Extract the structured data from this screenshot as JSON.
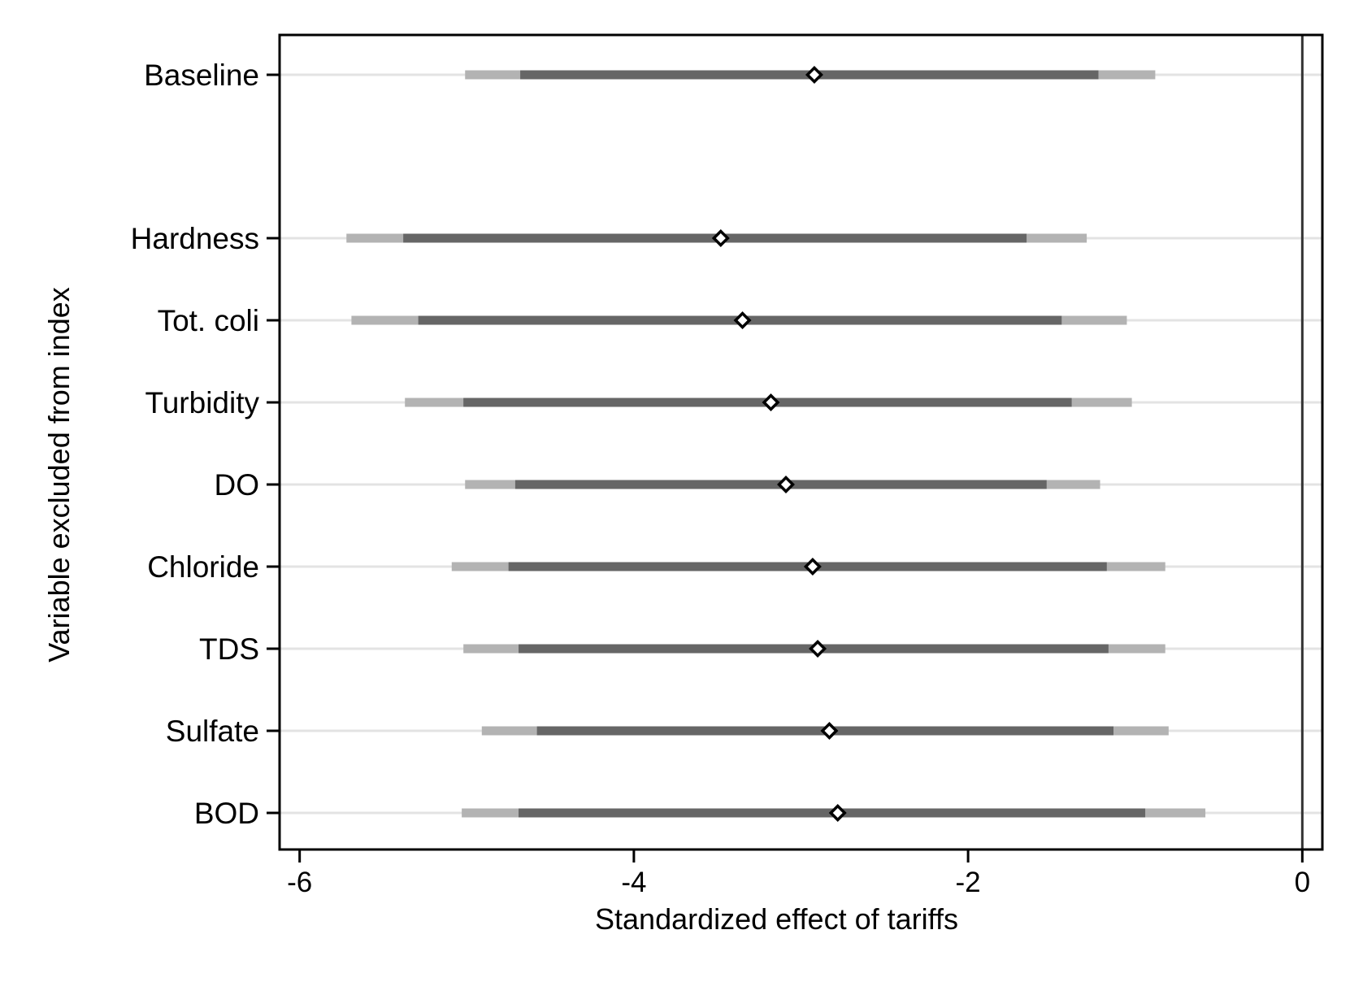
{
  "chart_data": {
    "type": "coefficient-plot",
    "xlabel": "Standardized effect of tariffs",
    "ylabel": "Variable excluded from index",
    "xlim": [
      -6.12,
      0.12
    ],
    "xticks": [
      -6,
      -4,
      -2,
      0
    ],
    "xtick_labels": [
      "-6",
      "-4",
      "-2",
      "0"
    ],
    "reference_line_x": 0,
    "grid": "horizontal lines at each row",
    "rows": [
      {
        "label": "Baseline",
        "estimate": -2.92,
        "ci_inner": [
          -4.68,
          -1.22
        ],
        "ci_outer": [
          -5.01,
          -0.88
        ]
      },
      {
        "label": "Hardness",
        "estimate": -3.48,
        "ci_inner": [
          -5.38,
          -1.65
        ],
        "ci_outer": [
          -5.72,
          -1.29
        ]
      },
      {
        "label": "Tot. coli",
        "estimate": -3.35,
        "ci_inner": [
          -5.29,
          -1.44
        ],
        "ci_outer": [
          -5.69,
          -1.05
        ]
      },
      {
        "label": "Turbidity",
        "estimate": -3.18,
        "ci_inner": [
          -5.02,
          -1.38
        ],
        "ci_outer": [
          -5.37,
          -1.02
        ]
      },
      {
        "label": "DO",
        "estimate": -3.09,
        "ci_inner": [
          -4.71,
          -1.53
        ],
        "ci_outer": [
          -5.01,
          -1.21
        ]
      },
      {
        "label": "Chloride",
        "estimate": -2.93,
        "ci_inner": [
          -4.75,
          -1.17
        ],
        "ci_outer": [
          -5.09,
          -0.82
        ]
      },
      {
        "label": "TDS",
        "estimate": -2.9,
        "ci_inner": [
          -4.69,
          -1.16
        ],
        "ci_outer": [
          -5.02,
          -0.82
        ]
      },
      {
        "label": "Sulfate",
        "estimate": -2.83,
        "ci_inner": [
          -4.58,
          -1.13
        ],
        "ci_outer": [
          -4.91,
          -0.8
        ]
      },
      {
        "label": "BOD",
        "estimate": -2.78,
        "ci_inner": [
          -4.69,
          -0.94
        ],
        "ci_outer": [
          -5.03,
          -0.58
        ]
      }
    ],
    "colors": {
      "inner_ci": "#666666",
      "outer_ci": "#b3b3b3",
      "row_line": "#e3e3e3",
      "marker_fill": "#ffffff",
      "marker_stroke": "#000000"
    }
  }
}
